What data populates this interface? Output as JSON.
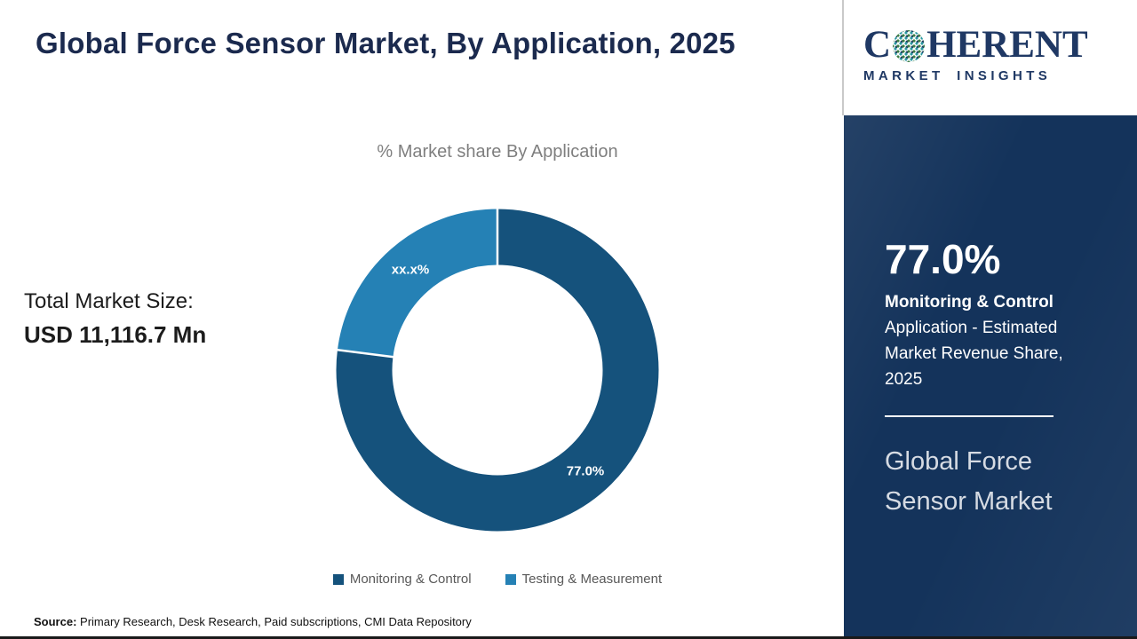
{
  "header": {
    "title": "Global Force Sensor Market, By Application, 2025",
    "logo": {
      "brand_prefix": "C",
      "brand_suffix": "HERENT",
      "subtitle": "MARKET INSIGHTS"
    }
  },
  "stats_left": {
    "label": "Total Market Size:",
    "value": "USD 11,116.7 Mn"
  },
  "chart_data": {
    "type": "pie",
    "donut": true,
    "title": "% Market share By Application",
    "categories": [
      "Monitoring & Control",
      "Testing & Measurement"
    ],
    "values": [
      77.0,
      23.0
    ],
    "value_labels": [
      "77.0%",
      "xx.x%"
    ],
    "colors": [
      "#15527c",
      "#2581b5"
    ],
    "legend_position": "bottom"
  },
  "sidebar": {
    "background_color": "#14335b",
    "stat_value": "77.0%",
    "stat_title": "Monitoring & Control",
    "stat_description": "Application - Estimated Market Revenue Share, 2025",
    "product_name": "Global Force Sensor Market"
  },
  "footer": {
    "source_label": "Source:",
    "source_text": "Primary Research, Desk Research, Paid subscriptions, CMI Data Repository"
  }
}
